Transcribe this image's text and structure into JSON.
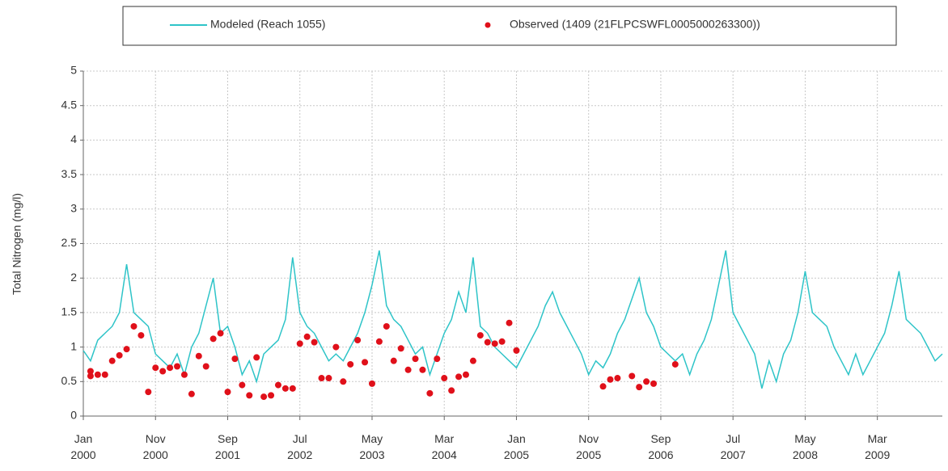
{
  "chart_data": {
    "type": "line",
    "y_label": "Total Nitrogen (mg/l)",
    "grid": true,
    "ylim": [
      0,
      5
    ],
    "yticks": [
      0,
      0.5,
      1,
      1.5,
      2,
      2.5,
      3,
      3.5,
      4,
      4.5,
      5
    ],
    "xlim": [
      "2000-01",
      "2009-12"
    ],
    "xticks": [
      {
        "value": "2000-01",
        "label": "Jan 2000"
      },
      {
        "value": "2000-11",
        "label": "Nov 2000"
      },
      {
        "value": "2001-09",
        "label": "Sep 2001"
      },
      {
        "value": "2002-07",
        "label": "Jul 2002"
      },
      {
        "value": "2003-05",
        "label": "May 2003"
      },
      {
        "value": "2004-03",
        "label": "Mar 2004"
      },
      {
        "value": "2005-01",
        "label": "Jan 2005"
      },
      {
        "value": "2005-11",
        "label": "Nov 2005"
      },
      {
        "value": "2006-09",
        "label": "Sep 2006"
      },
      {
        "value": "2007-07",
        "label": "Jul 2007"
      },
      {
        "value": "2008-05",
        "label": "May 2008"
      },
      {
        "value": "2009-03",
        "label": "Mar 2009"
      }
    ],
    "series": [
      {
        "name": "Modeled (Reach 1055)",
        "color": "#2ec4c8",
        "style": "line",
        "x": [
          "2000-01",
          "2000-02",
          "2000-03",
          "2000-04",
          "2000-05",
          "2000-06",
          "2000-07",
          "2000-08",
          "2000-09",
          "2000-10",
          "2000-11",
          "2000-12",
          "2001-01",
          "2001-02",
          "2001-03",
          "2001-04",
          "2001-05",
          "2001-06",
          "2001-07",
          "2001-08",
          "2001-09",
          "2001-10",
          "2001-11",
          "2001-12",
          "2002-01",
          "2002-02",
          "2002-03",
          "2002-04",
          "2002-05",
          "2002-06",
          "2002-07",
          "2002-08",
          "2002-09",
          "2002-10",
          "2002-11",
          "2002-12",
          "2003-01",
          "2003-02",
          "2003-03",
          "2003-04",
          "2003-05",
          "2003-06",
          "2003-07",
          "2003-08",
          "2003-09",
          "2003-10",
          "2003-11",
          "2003-12",
          "2004-01",
          "2004-02",
          "2004-03",
          "2004-04",
          "2004-05",
          "2004-06",
          "2004-07",
          "2004-08",
          "2004-09",
          "2004-10",
          "2004-11",
          "2004-12",
          "2005-01",
          "2005-02",
          "2005-03",
          "2005-04",
          "2005-05",
          "2005-06",
          "2005-07",
          "2005-08",
          "2005-09",
          "2005-10",
          "2005-11",
          "2005-12",
          "2006-01",
          "2006-02",
          "2006-03",
          "2006-04",
          "2006-05",
          "2006-06",
          "2006-07",
          "2006-08",
          "2006-09",
          "2006-10",
          "2006-11",
          "2006-12",
          "2007-01",
          "2007-02",
          "2007-03",
          "2007-04",
          "2007-05",
          "2007-06",
          "2007-07",
          "2007-08",
          "2007-09",
          "2007-10",
          "2007-11",
          "2007-12",
          "2008-01",
          "2008-02",
          "2008-03",
          "2008-04",
          "2008-05",
          "2008-06",
          "2008-07",
          "2008-08",
          "2008-09",
          "2008-10",
          "2008-11",
          "2008-12",
          "2009-01",
          "2009-02",
          "2009-03",
          "2009-04",
          "2009-05",
          "2009-06",
          "2009-07",
          "2009-08",
          "2009-09",
          "2009-10",
          "2009-11",
          "2009-12"
        ],
        "values": [
          0.95,
          0.8,
          1.1,
          1.2,
          1.3,
          1.5,
          2.2,
          1.5,
          1.4,
          1.3,
          0.9,
          0.8,
          0.7,
          0.9,
          0.6,
          1.0,
          1.2,
          1.6,
          2.0,
          1.2,
          1.3,
          1.0,
          0.6,
          0.8,
          0.5,
          0.9,
          1.0,
          1.1,
          1.4,
          2.3,
          1.5,
          1.3,
          1.2,
          1.0,
          0.8,
          0.9,
          0.8,
          1.0,
          1.2,
          1.5,
          1.9,
          2.4,
          1.6,
          1.4,
          1.3,
          1.1,
          0.9,
          1.0,
          0.6,
          0.9,
          1.2,
          1.4,
          1.8,
          1.5,
          2.3,
          1.3,
          1.2,
          1.0,
          0.9,
          0.8,
          0.7,
          0.9,
          1.1,
          1.3,
          1.6,
          1.8,
          1.5,
          1.3,
          1.1,
          0.9,
          0.6,
          0.8,
          0.7,
          0.9,
          1.2,
          1.4,
          1.7,
          2.0,
          1.5,
          1.3,
          1.0,
          0.9,
          0.8,
          0.9,
          0.6,
          0.9,
          1.1,
          1.4,
          1.9,
          2.4,
          1.5,
          1.3,
          1.1,
          0.9,
          0.4,
          0.8,
          0.5,
          0.9,
          1.1,
          1.5,
          2.1,
          1.5,
          1.4,
          1.3,
          1.0,
          0.8,
          0.6,
          0.9,
          0.6,
          0.8,
          1.0,
          1.2,
          1.6,
          2.1,
          1.4,
          1.3,
          1.2,
          1.0,
          0.8,
          0.9
        ]
      },
      {
        "name": "Observed (1409 (21FLPCSWFL0005000263300))",
        "color": "#e0101a",
        "style": "dots",
        "x": [
          "2000-02",
          "2000-02",
          "2000-03",
          "2000-04",
          "2000-05",
          "2000-06",
          "2000-07",
          "2000-08",
          "2000-09",
          "2000-10",
          "2000-11",
          "2000-12",
          "2001-01",
          "2001-02",
          "2001-03",
          "2001-04",
          "2001-05",
          "2001-06",
          "2001-07",
          "2001-08",
          "2001-09",
          "2001-10",
          "2001-11",
          "2001-12",
          "2002-01",
          "2002-02",
          "2002-03",
          "2002-04",
          "2002-05",
          "2002-06",
          "2002-07",
          "2002-08",
          "2002-09",
          "2002-10",
          "2002-11",
          "2002-12",
          "2003-01",
          "2003-02",
          "2003-03",
          "2003-04",
          "2003-05",
          "2003-06",
          "2003-07",
          "2003-08",
          "2003-09",
          "2003-10",
          "2003-11",
          "2003-12",
          "2004-01",
          "2004-02",
          "2004-03",
          "2004-04",
          "2004-05",
          "2004-06",
          "2004-07",
          "2004-08",
          "2004-09",
          "2004-10",
          "2004-11",
          "2004-12",
          "2005-01",
          "2006-01",
          "2006-02",
          "2006-03",
          "2006-05",
          "2006-06",
          "2006-07",
          "2006-08",
          "2006-11"
        ],
        "values": [
          0.58,
          0.65,
          0.6,
          0.6,
          0.8,
          0.88,
          0.97,
          1.3,
          1.17,
          0.35,
          0.7,
          0.65,
          0.7,
          0.72,
          0.6,
          0.32,
          0.87,
          0.72,
          1.12,
          1.2,
          0.35,
          0.83,
          0.45,
          0.3,
          0.85,
          0.28,
          0.3,
          0.45,
          0.4,
          0.4,
          1.05,
          1.15,
          1.07,
          0.55,
          0.55,
          1.0,
          0.5,
          0.75,
          1.1,
          0.78,
          0.47,
          1.08,
          1.3,
          0.8,
          0.98,
          0.67,
          0.83,
          0.67,
          0.33,
          0.83,
          0.55,
          0.37,
          0.57,
          0.6,
          0.8,
          1.17,
          1.07,
          1.05,
          1.08,
          1.35,
          0.95,
          0.43,
          0.53,
          0.55,
          0.58,
          0.42,
          0.5,
          0.47,
          0.75
        ]
      }
    ]
  }
}
